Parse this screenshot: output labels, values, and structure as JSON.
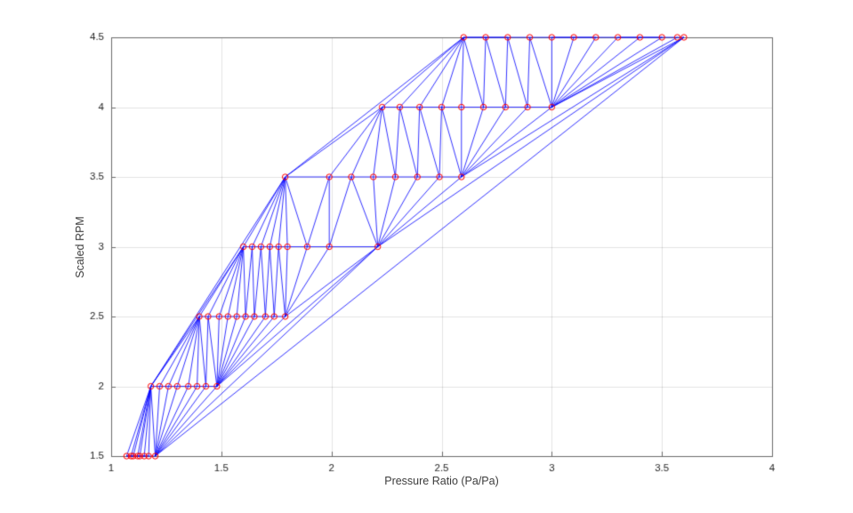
{
  "figure": {
    "background": "#ffffff"
  },
  "chart_data": {
    "type": "scatter",
    "subtype": "delaunay-triangulation-mesh",
    "title": "",
    "xlabel": "Pressure Ratio (Pa/Pa)",
    "ylabel": "Scaled RPM",
    "xlim": [
      1,
      4
    ],
    "ylim": [
      1.5,
      4.5
    ],
    "xticks": [
      1,
      1.5,
      2,
      2.5,
      3,
      3.5,
      4
    ],
    "yticks": [
      1.5,
      2,
      2.5,
      3,
      3.5,
      4,
      4.5
    ],
    "grid": true,
    "legend": "none",
    "styles": {
      "edge_color": "#0000ff",
      "marker_color": "#ff0000",
      "grid_color": "rgba(38,38,38,0.13)",
      "axis_color": "#6b6b6b",
      "tick_label_color": "#262626"
    },
    "series": [
      {
        "name": "RPM 1.5",
        "rpm": 1.5,
        "pressure_ratio": [
          1.07,
          1.09,
          1.1,
          1.12,
          1.13,
          1.15,
          1.17,
          1.2
        ]
      },
      {
        "name": "RPM 2.0",
        "rpm": 2.0,
        "pressure_ratio": [
          1.18,
          1.22,
          1.26,
          1.3,
          1.35,
          1.39,
          1.43,
          1.48
        ]
      },
      {
        "name": "RPM 2.5",
        "rpm": 2.5,
        "pressure_ratio": [
          1.4,
          1.44,
          1.49,
          1.53,
          1.57,
          1.61,
          1.65,
          1.7,
          1.74,
          1.79
        ]
      },
      {
        "name": "RPM 3.0",
        "rpm": 3.0,
        "pressure_ratio": [
          1.6,
          1.64,
          1.68,
          1.72,
          1.76,
          1.8,
          1.89,
          1.99,
          2.21
        ]
      },
      {
        "name": "RPM 3.5",
        "rpm": 3.5,
        "pressure_ratio": [
          1.79,
          1.99,
          2.09,
          2.19,
          2.29,
          2.39,
          2.49,
          2.59
        ]
      },
      {
        "name": "RPM 4.0",
        "rpm": 4.0,
        "pressure_ratio": [
          2.23,
          2.31,
          2.4,
          2.5,
          2.59,
          2.69,
          2.79,
          2.89,
          3.0
        ]
      },
      {
        "name": "RPM 4.5",
        "rpm": 4.5,
        "pressure_ratio": [
          2.6,
          2.7,
          2.8,
          2.9,
          3.0,
          3.1,
          3.2,
          3.3,
          3.4,
          3.5,
          3.57,
          3.6
        ]
      }
    ]
  }
}
